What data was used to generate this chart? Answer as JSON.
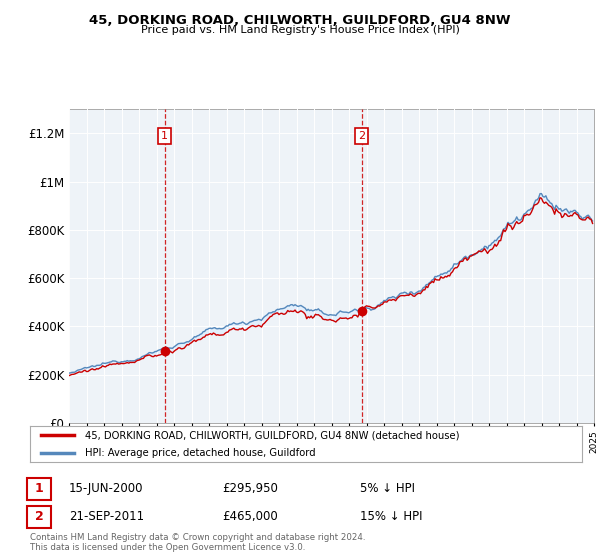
{
  "title": "45, DORKING ROAD, CHILWORTH, GUILDFORD, GU4 8NW",
  "subtitle": "Price paid vs. HM Land Registry's House Price Index (HPI)",
  "x_start_year": 1995,
  "x_end_year": 2025,
  "ylim": [
    0,
    1300000
  ],
  "yticks": [
    0,
    200000,
    400000,
    600000,
    800000,
    1000000,
    1200000
  ],
  "ytick_labels": [
    "£0",
    "£200K",
    "£400K",
    "£600K",
    "£800K",
    "£1M",
    "£1.2M"
  ],
  "sale1_year": 2000.46,
  "sale1_value": 295950,
  "sale2_year": 2011.72,
  "sale2_value": 465000,
  "sale1_date_str": "15-JUN-2000",
  "sale1_price_str": "£295,950",
  "sale1_hpi_str": "5% ↓ HPI",
  "sale2_date_str": "21-SEP-2011",
  "sale2_price_str": "£465,000",
  "sale2_hpi_str": "15% ↓ HPI",
  "legend_entry1": "45, DORKING ROAD, CHILWORTH, GUILDFORD, GU4 8NW (detached house)",
  "legend_entry2": "HPI: Average price, detached house, Guildford",
  "footer_line1": "Contains HM Land Registry data © Crown copyright and database right 2024.",
  "footer_line2": "This data is licensed under the Open Government Licence v3.0.",
  "line_color_red": "#cc0000",
  "line_color_blue": "#5588bb",
  "fill_color": "#ddeeff",
  "sale_marker_color": "#cc0000",
  "dashed_line_color": "#cc0000",
  "bg_color": "#ffffff",
  "plot_bg_color": "#eef3f8",
  "grid_color": "#ffffff"
}
